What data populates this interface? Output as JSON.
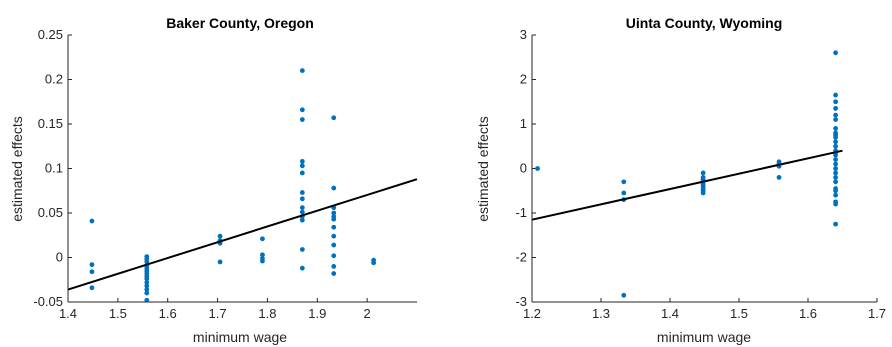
{
  "colors": {
    "points": "#0072BD",
    "fit_line": "#000000",
    "axes": "#262626"
  },
  "chart_data": [
    {
      "type": "scatter",
      "title": "Baker County,  Oregon",
      "xlabel": "minimum wage",
      "ylabel": "estimated effects",
      "xlim": [
        1.4,
        2.1
      ],
      "ylim": [
        -0.05,
        0.25
      ],
      "xticks": [
        1.4,
        1.5,
        1.6,
        1.7,
        1.8,
        1.9,
        2.0
      ],
      "xtick_labels": [
        "1.4",
        "1.5",
        "1.6",
        "1.7",
        "1.8",
        "1.9",
        "2"
      ],
      "yticks": [
        -0.05,
        0,
        0.05,
        0.1,
        0.15,
        0.2,
        0.25
      ],
      "ytick_labels": [
        "-0.05",
        "0",
        "0.05",
        "0.1",
        "0.15",
        "0.2",
        "0.25"
      ],
      "grid": false,
      "points": [
        [
          1.448,
          0.041
        ],
        [
          1.448,
          -0.008
        ],
        [
          1.448,
          -0.016
        ],
        [
          1.448,
          -0.034
        ],
        [
          1.558,
          0.001
        ],
        [
          1.558,
          -0.002
        ],
        [
          1.558,
          -0.005
        ],
        [
          1.558,
          -0.009
        ],
        [
          1.558,
          -0.012
        ],
        [
          1.558,
          -0.015
        ],
        [
          1.558,
          -0.018
        ],
        [
          1.558,
          -0.021
        ],
        [
          1.558,
          -0.024
        ],
        [
          1.558,
          -0.028
        ],
        [
          1.558,
          -0.032
        ],
        [
          1.558,
          -0.036
        ],
        [
          1.558,
          -0.04
        ],
        [
          1.558,
          -0.048
        ],
        [
          1.705,
          0.024
        ],
        [
          1.705,
          0.019
        ],
        [
          1.705,
          0.016
        ],
        [
          1.705,
          -0.005
        ],
        [
          1.79,
          0.021
        ],
        [
          1.79,
          0.003
        ],
        [
          1.79,
          -0.001
        ],
        [
          1.79,
          -0.004
        ],
        [
          1.87,
          0.21
        ],
        [
          1.87,
          0.166
        ],
        [
          1.87,
          0.155
        ],
        [
          1.87,
          0.108
        ],
        [
          1.87,
          0.103
        ],
        [
          1.87,
          0.095
        ],
        [
          1.87,
          0.073
        ],
        [
          1.87,
          0.066
        ],
        [
          1.87,
          0.056
        ],
        [
          1.87,
          0.051
        ],
        [
          1.87,
          0.046
        ],
        [
          1.87,
          0.042
        ],
        [
          1.87,
          0.009
        ],
        [
          1.87,
          -0.012
        ],
        [
          1.933,
          0.157
        ],
        [
          1.933,
          0.078
        ],
        [
          1.933,
          0.056
        ],
        [
          1.933,
          0.05
        ],
        [
          1.933,
          0.046
        ],
        [
          1.933,
          0.043
        ],
        [
          1.933,
          0.034
        ],
        [
          1.933,
          0.024
        ],
        [
          1.933,
          0.014
        ],
        [
          1.933,
          0.002
        ],
        [
          1.933,
          -0.01
        ],
        [
          1.933,
          -0.018
        ],
        [
          2.013,
          -0.003
        ],
        [
          2.013,
          -0.006
        ]
      ],
      "fit_line": {
        "x": [
          1.4,
          2.1
        ],
        "y": [
          -0.036,
          0.088
        ]
      }
    },
    {
      "type": "scatter",
      "title": "Uinta County, Wyoming",
      "xlabel": "minimum wage",
      "ylabel": "estimated effects",
      "xlim": [
        1.2,
        1.7
      ],
      "ylim": [
        -3,
        3
      ],
      "xticks": [
        1.2,
        1.3,
        1.4,
        1.5,
        1.6,
        1.7
      ],
      "xtick_labels": [
        "1.2",
        "1.3",
        "1.4",
        "1.5",
        "1.6",
        "1.7"
      ],
      "yticks": [
        -3,
        -2,
        -1,
        0,
        1,
        2,
        3
      ],
      "ytick_labels": [
        "-3",
        "-2",
        "-1",
        "0",
        "1",
        "2",
        "3"
      ],
      "grid": false,
      "points": [
        [
          1.208,
          0.0
        ],
        [
          1.333,
          -0.3
        ],
        [
          1.333,
          -0.55
        ],
        [
          1.333,
          -0.7
        ],
        [
          1.333,
          -2.85
        ],
        [
          1.448,
          -0.1
        ],
        [
          1.448,
          -0.2
        ],
        [
          1.448,
          -0.25
        ],
        [
          1.448,
          -0.3
        ],
        [
          1.448,
          -0.35
        ],
        [
          1.448,
          -0.4
        ],
        [
          1.448,
          -0.45
        ],
        [
          1.448,
          -0.5
        ],
        [
          1.448,
          -0.55
        ],
        [
          1.558,
          0.15
        ],
        [
          1.558,
          0.1
        ],
        [
          1.558,
          0.05
        ],
        [
          1.558,
          -0.2
        ],
        [
          1.64,
          2.6
        ],
        [
          1.64,
          1.65
        ],
        [
          1.64,
          1.5
        ],
        [
          1.64,
          1.35
        ],
        [
          1.64,
          1.2
        ],
        [
          1.64,
          1.1
        ],
        [
          1.64,
          0.9
        ],
        [
          1.64,
          0.8
        ],
        [
          1.64,
          0.75
        ],
        [
          1.64,
          0.7
        ],
        [
          1.64,
          0.6
        ],
        [
          1.64,
          0.5
        ],
        [
          1.64,
          0.4
        ],
        [
          1.64,
          0.35
        ],
        [
          1.64,
          0.3
        ],
        [
          1.64,
          0.2
        ],
        [
          1.64,
          0.1
        ],
        [
          1.64,
          0.0
        ],
        [
          1.64,
          -0.1
        ],
        [
          1.64,
          -0.2
        ],
        [
          1.64,
          -0.3
        ],
        [
          1.64,
          -0.45
        ],
        [
          1.64,
          -0.5
        ],
        [
          1.64,
          -0.6
        ],
        [
          1.64,
          -0.75
        ],
        [
          1.64,
          -0.8
        ],
        [
          1.64,
          -1.25
        ]
      ],
      "fit_line": {
        "x": [
          1.2,
          1.65
        ],
        "y": [
          -1.15,
          0.4
        ]
      }
    }
  ]
}
